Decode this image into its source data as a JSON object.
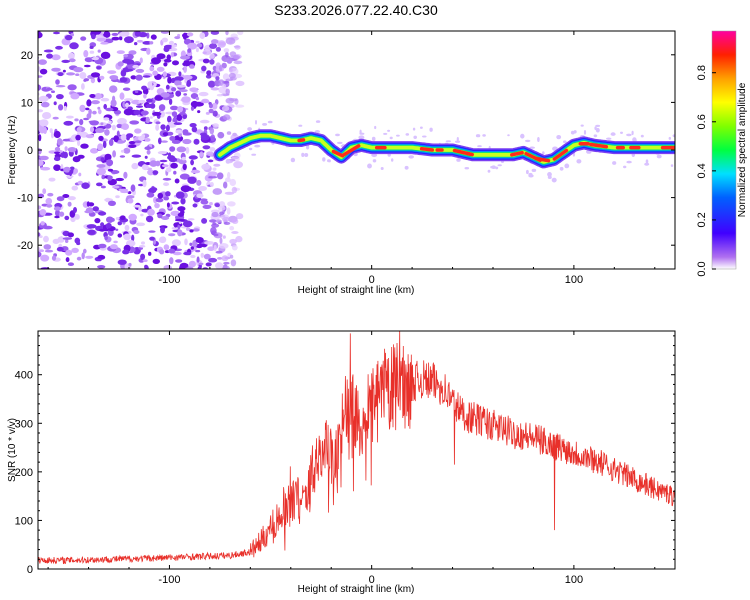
{
  "title": "S233.2026.077.22.40.C30",
  "chart_data": [
    {
      "type": "heatmap",
      "xlabel": "Height of straight line (km)",
      "ylabel": "Frequency (Hz)",
      "xlim": [
        -165,
        150
      ],
      "ylim": [
        -25,
        25
      ],
      "xticks": [
        -100,
        0,
        100
      ],
      "xtick_labels": [
        "-100",
        "0",
        "100"
      ],
      "yticks": [
        -20,
        -10,
        0,
        10,
        20
      ],
      "ytick_labels": [
        "-20",
        "-10",
        "0",
        "10",
        "20"
      ],
      "noise_region_x": [
        -165,
        -60
      ],
      "signal_region_x": [
        -75,
        150
      ],
      "ridge": {
        "x": [
          -75,
          -70,
          -65,
          -60,
          -55,
          -50,
          -45,
          -40,
          -35,
          -30,
          -25,
          -20,
          -15,
          -10,
          -5,
          0,
          10,
          20,
          30,
          40,
          50,
          60,
          70,
          75,
          80,
          85,
          90,
          95,
          100,
          105,
          110,
          120,
          130,
          140,
          150
        ],
        "freq": [
          -1,
          0.5,
          1.5,
          2.5,
          3,
          3,
          2.5,
          2,
          2,
          2.5,
          2,
          0,
          -1.5,
          0.5,
          1,
          0.5,
          0.5,
          0.5,
          0,
          0,
          -1,
          -1,
          -1,
          -0.5,
          -1.5,
          -2.5,
          -2,
          -0.5,
          1,
          1.5,
          1,
          0.5,
          0.5,
          0.5,
          0.5
        ]
      },
      "colorbar": {
        "label": "Normalized spectral amplitude",
        "range": [
          0,
          0.97
        ],
        "ticks": [
          0.0,
          0.2,
          0.4,
          0.6,
          0.8
        ],
        "tick_labels": [
          "0.0",
          "0.2",
          "0.4",
          "0.6",
          "0.8"
        ]
      }
    },
    {
      "type": "line",
      "xlabel": "Height of straight line (km)",
      "ylabel": "SNR (10 * v/v)",
      "xlim": [
        -165,
        150
      ],
      "ylim": [
        0,
        490
      ],
      "xticks": [
        -100,
        0,
        100
      ],
      "xtick_labels": [
        "-100",
        "0",
        "100"
      ],
      "yticks": [
        0,
        100,
        200,
        300,
        400
      ],
      "ytick_labels": [
        "0",
        "100",
        "200",
        "300",
        "400"
      ],
      "color": "#e8302a",
      "series": [
        {
          "name": "SNR",
          "x": [
            -165,
            -150,
            -130,
            -110,
            -90,
            -70,
            -60,
            -55,
            -50,
            -45,
            -40,
            -35,
            -30,
            -25,
            -20,
            -15,
            -12,
            -10,
            -5,
            0,
            5,
            10,
            15,
            20,
            25,
            30,
            35,
            40,
            45,
            50,
            55,
            60,
            70,
            80,
            90,
            100,
            110,
            120,
            130,
            140,
            150
          ],
          "y": [
            18,
            18,
            20,
            22,
            25,
            28,
            35,
            55,
            85,
            110,
            140,
            150,
            185,
            250,
            230,
            290,
            330,
            350,
            300,
            330,
            360,
            370,
            380,
            385,
            390,
            385,
            375,
            345,
            320,
            310,
            305,
            295,
            280,
            270,
            255,
            240,
            225,
            205,
            185,
            165,
            150
          ]
        }
      ],
      "spikes": [
        {
          "x": -10.5,
          "y": 485
        },
        {
          "x": -9,
          "y": 160
        },
        {
          "x": 90.5,
          "y": 80
        },
        {
          "x": 41,
          "y": 215
        }
      ]
    }
  ]
}
